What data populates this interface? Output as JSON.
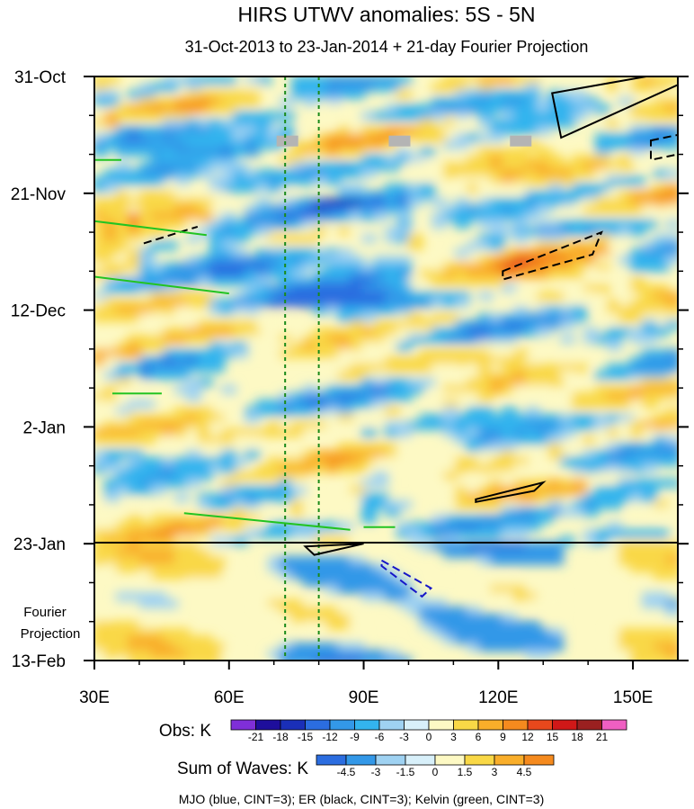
{
  "chart_data": {
    "type": "heatmap",
    "title": "HIRS UTWV anomalies: 5S - 5N",
    "subtitle": "31-Oct-2013 to 23-Jan-2014 + 21-day Fourier Projection",
    "x_axis": {
      "range": [
        30,
        160
      ],
      "tick_labels": [
        "30E",
        "60E",
        "90E",
        "120E",
        "150E"
      ],
      "tick_values": [
        30,
        60,
        90,
        120,
        150
      ]
    },
    "y_axis": {
      "range_days": [
        0,
        105
      ],
      "tick_labels": [
        "31-Oct",
        "21-Nov",
        "12-Dec",
        "2-Jan",
        "23-Jan",
        "13-Feb"
      ],
      "tick_days": [
        0,
        21,
        42,
        63,
        84,
        105
      ]
    },
    "projection_label": [
      "Fourier",
      "Projection"
    ],
    "reference_lines_lon": [
      72.5,
      80
    ],
    "obs_colorbar": {
      "label": "Obs: K",
      "levels": [
        "-21",
        "-18",
        "-15",
        "-12",
        "-9",
        "-6",
        "-3",
        "0",
        "3",
        "6",
        "9",
        "12",
        "15",
        "18",
        "21"
      ],
      "colors": [
        "#7f2fd8",
        "#1e0e9c",
        "#1a2fb8",
        "#2b6de0",
        "#3398e8",
        "#33b4ee",
        "#9fd2f2",
        "#d8f0fa",
        "#fdf9c4",
        "#f9d846",
        "#f9ae2a",
        "#f58a1e",
        "#e8481c",
        "#d01818",
        "#9a2020",
        "#ef5fc2"
      ]
    },
    "waves_colorbar": {
      "label": "Sum of Waves: K",
      "levels": [
        "-4.5",
        "-3",
        "-1.5",
        "0",
        "1.5",
        "3",
        "4.5"
      ],
      "colors": [
        "#2b6de0",
        "#3398e8",
        "#9fd2f2",
        "#d8f0fa",
        "#fdf9c4",
        "#f9d846",
        "#f9ae2a",
        "#f58a1e"
      ]
    },
    "footer": "MJO (blue, CINT=3); ER (black, CINT=3); Kelvin (green, CINT=3)",
    "contours": [
      {
        "wave": "ER",
        "sign": "positive",
        "points": [
          [
            132,
            3
          ],
          [
            160,
            -1
          ],
          [
            160,
            1.5
          ],
          [
            134,
            11
          ]
        ]
      },
      {
        "wave": "ER",
        "sign": "negative",
        "points": [
          [
            154,
            11.5
          ],
          [
            160,
            10.5
          ],
          [
            160,
            14
          ],
          [
            154,
            15
          ]
        ]
      },
      {
        "wave": "ER",
        "sign": "negative",
        "points": [
          [
            41,
            30
          ],
          [
            53,
            27
          ]
        ]
      },
      {
        "wave": "ER",
        "sign": "negative",
        "points": [
          [
            121,
            35
          ],
          [
            143,
            28
          ],
          [
            141,
            32
          ],
          [
            121,
            36.5
          ]
        ]
      },
      {
        "wave": "ER",
        "sign": "positive",
        "points": [
          [
            115,
            76
          ],
          [
            130,
            73
          ],
          [
            128,
            74.5
          ],
          [
            115,
            76.5
          ]
        ]
      },
      {
        "wave": "ER",
        "sign": "positive",
        "points": [
          [
            77,
            84.5
          ],
          [
            90,
            84
          ],
          [
            79,
            86
          ]
        ]
      },
      {
        "wave": "MJO",
        "sign": "negative",
        "points": [
          [
            94,
            87
          ],
          [
            105,
            92
          ],
          [
            103,
            93.5
          ],
          [
            94,
            88
          ]
        ]
      },
      {
        "wave": "Kelvin",
        "sign": "positive",
        "points": [
          [
            30,
            26
          ],
          [
            55,
            28.5
          ]
        ]
      },
      {
        "wave": "Kelvin",
        "sign": "positive",
        "points": [
          [
            30,
            36
          ],
          [
            60,
            39
          ]
        ]
      },
      {
        "wave": "Kelvin",
        "sign": "positive",
        "points": [
          [
            30,
            15
          ],
          [
            36,
            15
          ]
        ]
      },
      {
        "wave": "Kelvin",
        "sign": "positive",
        "points": [
          [
            34,
            57
          ],
          [
            45,
            57
          ]
        ]
      },
      {
        "wave": "Kelvin",
        "sign": "positive",
        "points": [
          [
            50,
            78.5
          ],
          [
            87,
            81.5
          ]
        ]
      },
      {
        "wave": "Kelvin",
        "sign": "positive",
        "points": [
          [
            90,
            81
          ],
          [
            97,
            81
          ]
        ]
      }
    ]
  }
}
